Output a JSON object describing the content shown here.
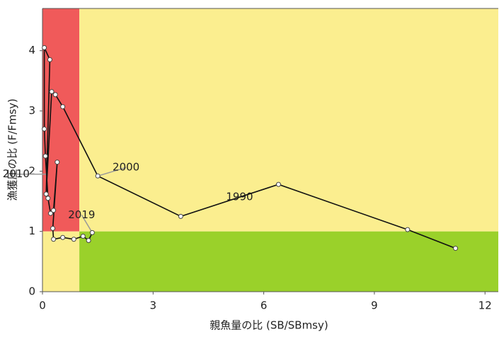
{
  "chart_data": {
    "type": "line",
    "x_label": "親魚量の比 (SB/SBmsy)",
    "y_label": "漁獲圧の比 (F/Fmsy)",
    "xlim": [
      0,
      12.36
    ],
    "ylim": [
      0,
      4.7
    ],
    "xticks": [
      0,
      3,
      6,
      9,
      12
    ],
    "yticks": [
      0,
      1,
      2,
      3,
      4
    ],
    "grid": false,
    "zones": {
      "x": 1,
      "y": 1,
      "overfished_color": "#f05a5a",
      "caution_color": "#fbee8f",
      "healthy_color": "#9ad12a"
    },
    "series": [
      {
        "color": "#111111",
        "x": [
          11.2,
          9.9,
          6.4,
          3.75,
          1.5,
          0.55,
          0.35,
          0.25,
          0.1,
          0.2,
          0.05,
          0.05,
          0.08,
          0.15,
          0.22,
          0.3,
          0.4,
          0.28,
          0.3,
          0.55,
          0.85,
          1.1,
          1.25,
          1.35
        ],
        "values": [
          0.72,
          1.03,
          1.78,
          1.25,
          1.92,
          3.07,
          3.27,
          3.32,
          1.62,
          3.85,
          4.05,
          2.7,
          2.25,
          1.55,
          1.3,
          1.35,
          2.15,
          1.05,
          0.87,
          0.9,
          0.87,
          0.92,
          0.85,
          0.98
        ]
      }
    ],
    "annotations": [
      {
        "text": "1990",
        "x": 6.4,
        "y": 1.78
      },
      {
        "text": "2000",
        "x": 1.5,
        "y": 1.92
      },
      {
        "text": "2010",
        "x": 0.15,
        "y": 1.95
      },
      {
        "text": "2019",
        "x": 1.35,
        "y": 0.98
      }
    ]
  }
}
